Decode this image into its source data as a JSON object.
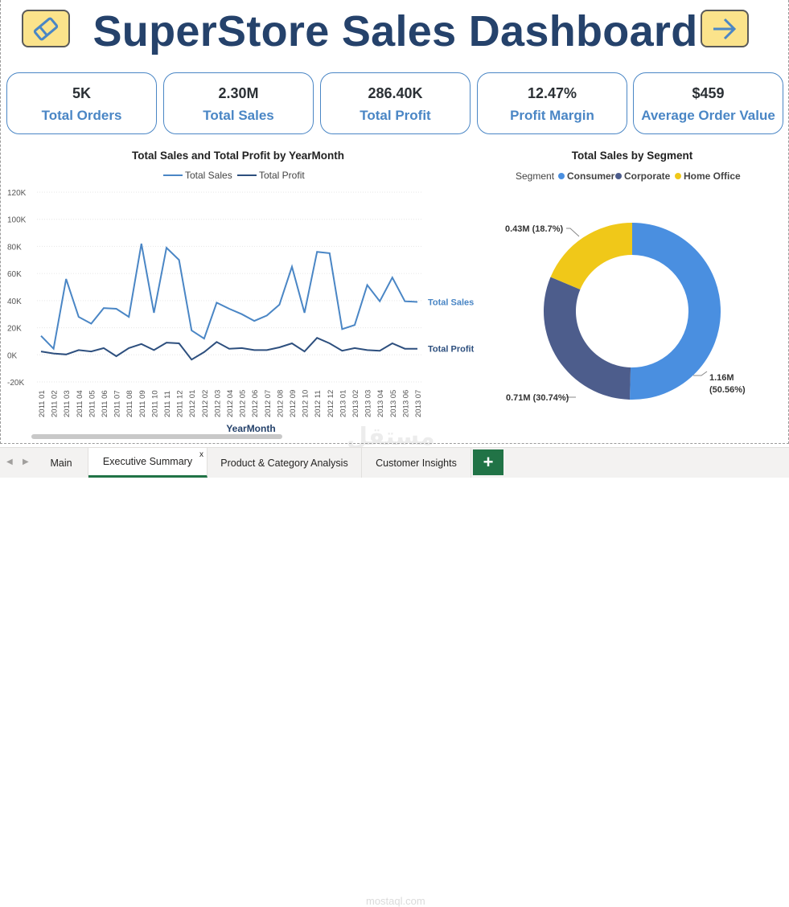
{
  "header": {
    "title": "SuperStore Sales Dashboard"
  },
  "kpis": [
    {
      "value": "5K",
      "label": "Total Orders"
    },
    {
      "value": "2.30M",
      "label": "Total Sales"
    },
    {
      "value": "286.40K",
      "label": "Total Profit"
    },
    {
      "value": "12.47%",
      "label": "Profit Margin"
    },
    {
      "value": "$459",
      "label": "Average Order Value"
    }
  ],
  "colors": {
    "title": "#25426b",
    "kpi_label": "#4a86c5",
    "sales_line": "#4a86c5",
    "profit_line": "#2d4f7e",
    "consumer": "#4a8fe0",
    "corporate": "#4d5d8c",
    "home_office": "#f0c819",
    "tab_accent": "#217346"
  },
  "line_chart": {
    "legend_sales": "Total Sales",
    "legend_profit": "Total Profit",
    "end_label_sales": "Total Sales",
    "end_label_profit": "Total Profit"
  },
  "donut_chart": {
    "legend_title": "Segment",
    "legend": [
      "Consumer",
      "Corporate",
      "Home Office"
    ],
    "labels": {
      "consumer": [
        "1.16M",
        "(50.56%)"
      ],
      "corporate": "0.71M (30.74%)",
      "home_office": "0.43M (18.7%)"
    }
  },
  "chart_data": [
    {
      "type": "line",
      "title": "Total Sales and Total Profit by YearMonth",
      "xlabel": "YearMonth",
      "ylabel": "",
      "ylim": [
        -20000,
        120000
      ],
      "yticks": [
        "120K",
        "100K",
        "80K",
        "60K",
        "40K",
        "20K",
        "0K",
        "-20K"
      ],
      "ytick_values": [
        120000,
        100000,
        80000,
        60000,
        40000,
        20000,
        0,
        -20000
      ],
      "x": [
        "2011 01",
        "2011 02",
        "2011 03",
        "2011 04",
        "2011 05",
        "2011 06",
        "2011 07",
        "2011 08",
        "2011 09",
        "2011 10",
        "2011 11",
        "2011 12",
        "2012 01",
        "2012 02",
        "2012 03",
        "2012 04",
        "2012 05",
        "2012 06",
        "2012 07",
        "2012 08",
        "2012 09",
        "2012 10",
        "2012 11",
        "2012 12",
        "2013 01",
        "2013 02",
        "2013 03",
        "2013 04",
        "2013 05",
        "2013 06",
        "2013 07"
      ],
      "series": [
        {
          "name": "Total Sales",
          "values": [
            14000,
            4500,
            56000,
            28000,
            23000,
            34500,
            34000,
            28000,
            82000,
            31000,
            79000,
            70000,
            18000,
            12000,
            38500,
            34000,
            30000,
            25000,
            29000,
            37000,
            65000,
            31000,
            76000,
            75000,
            19000,
            22000,
            51500,
            39500,
            57000,
            39500,
            39000
          ]
        },
        {
          "name": "Total Profit",
          "values": [
            2500,
            1000,
            300,
            3500,
            2500,
            5000,
            -1000,
            5000,
            8000,
            3500,
            9000,
            8500,
            -3500,
            2000,
            9500,
            4500,
            5000,
            3500,
            3500,
            5500,
            8500,
            2500,
            12500,
            8500,
            3000,
            5000,
            3500,
            3000,
            8500,
            4500,
            4500
          ]
        }
      ]
    },
    {
      "type": "pie",
      "title": "Total Sales by Segment",
      "categories": [
        "Consumer",
        "Corporate",
        "Home Office"
      ],
      "values": [
        1.16,
        0.71,
        0.43
      ],
      "percents": [
        50.56,
        30.74,
        18.7
      ],
      "unit": "M"
    }
  ],
  "tabs": [
    {
      "label": "Main"
    },
    {
      "label": "Executive Summary",
      "close": "x"
    },
    {
      "label": "Product & Category Analysis"
    },
    {
      "label": "Customer Insights"
    }
  ],
  "add_tab_label": "+",
  "watermark": {
    "arabic": "مستقل",
    "latin": "mostaql.com"
  }
}
